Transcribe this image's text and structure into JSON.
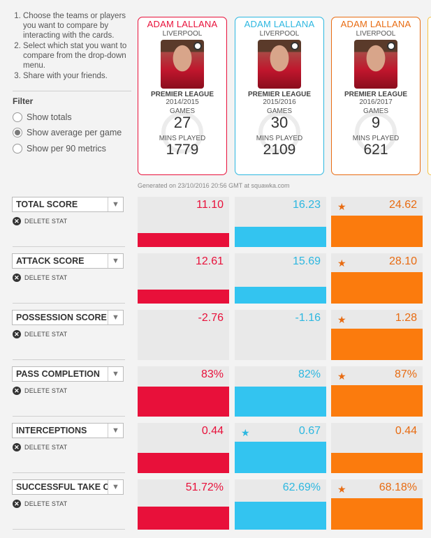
{
  "instructions": [
    "Choose the teams or players you want to compare by interacting with the cards.",
    "Select which stat you want to compare from the drop-down menu.",
    "Share with your friends."
  ],
  "filter": {
    "title": "Filter",
    "options": [
      {
        "label": "Show totals",
        "selected": false
      },
      {
        "label": "Show average per game",
        "selected": true
      },
      {
        "label": "Show per 90 metrics",
        "selected": false
      }
    ]
  },
  "players": [
    {
      "name": "ADAM LALLANA",
      "club": "LIVERPOOL",
      "league": "PREMIER LEAGUE",
      "season": "2014/2015",
      "games_label": "GAMES",
      "games": "27",
      "mins_label": "MINS PLAYED",
      "mins": "1779",
      "color": "#e8103a"
    },
    {
      "name": "ADAM LALLANA",
      "club": "LIVERPOOL",
      "league": "PREMIER LEAGUE",
      "season": "2015/2016",
      "games_label": "GAMES",
      "games": "30",
      "mins_label": "MINS PLAYED",
      "mins": "2109",
      "color": "#2cb7e0"
    },
    {
      "name": "ADAM LALLANA",
      "club": "LIVERPOOL",
      "league": "PREMIER LEAGUE",
      "season": "2016/2017",
      "games_label": "GAMES",
      "games": "9",
      "mins_label": "MINS PLAYED",
      "mins": "621",
      "color": "#e86b11"
    }
  ],
  "generated": "Generated on 23/10/2016 20:56 GMT at squawka.com",
  "delete_label": "DELETE STAT",
  "stats": [
    {
      "name": "TOTAL SCORE",
      "values": [
        "11.10",
        "16.23",
        "24.62"
      ],
      "fill": [
        0.28,
        0.4,
        0.62
      ],
      "star": 2
    },
    {
      "name": "ATTACK SCORE",
      "values": [
        "12.61",
        "15.69",
        "28.10"
      ],
      "fill": [
        0.28,
        0.33,
        0.62
      ],
      "star": 2
    },
    {
      "name": "POSSESSION SCORE",
      "values": [
        "-2.76",
        "-1.16",
        "1.28"
      ],
      "fill": [
        0,
        0,
        0.62
      ],
      "star": 2
    },
    {
      "name": "PASS COMPLETION",
      "values": [
        "83%",
        "82%",
        "87%"
      ],
      "fill": [
        0.6,
        0.6,
        0.62
      ],
      "star": 2
    },
    {
      "name": "INTERCEPTIONS",
      "values": [
        "0.44",
        "0.67",
        "0.44"
      ],
      "fill": [
        0.4,
        0.62,
        0.4
      ],
      "star": 1
    },
    {
      "name": "SUCCESSFUL TAKE ONS",
      "values": [
        "51.72%",
        "62.69%",
        "68.18%"
      ],
      "fill": [
        0.46,
        0.55,
        0.62
      ],
      "star": 2
    }
  ]
}
